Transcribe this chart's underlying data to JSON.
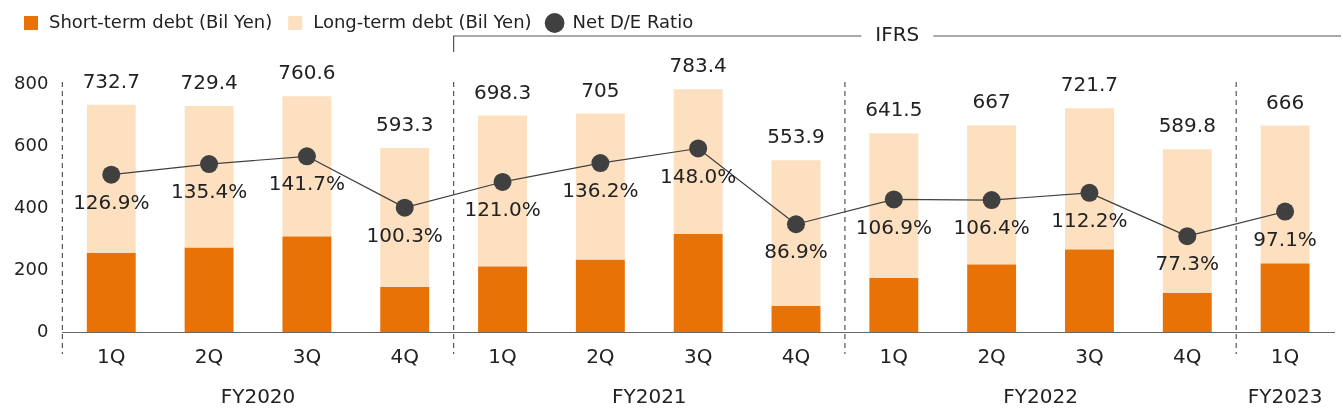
{
  "chart_data": {
    "type": "bar",
    "stacked": true,
    "categories": [
      "1Q",
      "2Q",
      "3Q",
      "4Q",
      "1Q",
      "2Q",
      "3Q",
      "4Q",
      "1Q",
      "2Q",
      "3Q",
      "4Q",
      "1Q"
    ],
    "series": [
      {
        "name": "Short-term debt (Bil Yen)",
        "color": "#e87206",
        "values": [
          255,
          272,
          308,
          145,
          211,
          233,
          316,
          84,
          174,
          218,
          266,
          126,
          221
        ]
      },
      {
        "name": "Long-term debt (Bil Yen)",
        "color": "#fde0c0",
        "values": [
          477.7,
          457.4,
          452.6,
          448.3,
          487.3,
          472,
          467.4,
          469.9,
          467.5,
          449,
          455.7,
          463.8,
          445
        ]
      },
      {
        "name": "Net D/E Ratio",
        "type": "line",
        "axis": "y2",
        "color": "#404040",
        "values": [
          126.9,
          135.4,
          141.7,
          100.3,
          121.0,
          136.2,
          148.0,
          86.9,
          106.9,
          106.4,
          112.2,
          77.3,
          97.1
        ],
        "value_labels": [
          "126.9%",
          "135.4%",
          "141.7%",
          "100.3%",
          "121.0%",
          "136.2%",
          "148.0%",
          "86.9%",
          "106.9%",
          "106.4%",
          "112.2%",
          "77.3%",
          "97.1%"
        ]
      }
    ],
    "totals": [
      "732.7",
      "729.4",
      "760.6",
      "593.3",
      "698.3",
      "705",
      "783.4",
      "553.9",
      "641.5",
      "667",
      "721.7",
      "589.8",
      "666"
    ],
    "ylim": [
      0,
      800
    ],
    "yticks": [
      0,
      200,
      400,
      600,
      800
    ],
    "y2lim": [
      0,
      200
    ],
    "marker": "circle",
    "grid": false,
    "legend": "top left",
    "annotations": [
      "FY2020",
      "FY2021",
      "FY2022",
      "FY2023",
      "IFRS"
    ]
  }
}
